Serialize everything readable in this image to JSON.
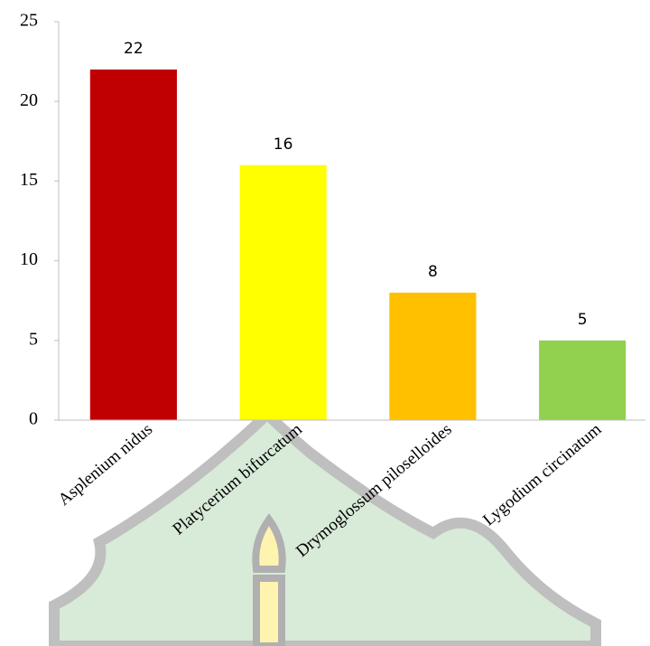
{
  "chart_data": {
    "type": "bar",
    "categories": [
      "Asplenium nidus",
      "Platycerium bifurcatum",
      "Drymoglossum piloselloides",
      "Lygodium circinatum"
    ],
    "values": [
      22,
      16,
      8,
      5
    ],
    "colors": [
      "#c00000",
      "#ffff00",
      "#ffc000",
      "#92d050"
    ],
    "ylim": [
      0,
      25
    ],
    "yticks": [
      0,
      5,
      10,
      15,
      20,
      25
    ],
    "grid": false
  }
}
